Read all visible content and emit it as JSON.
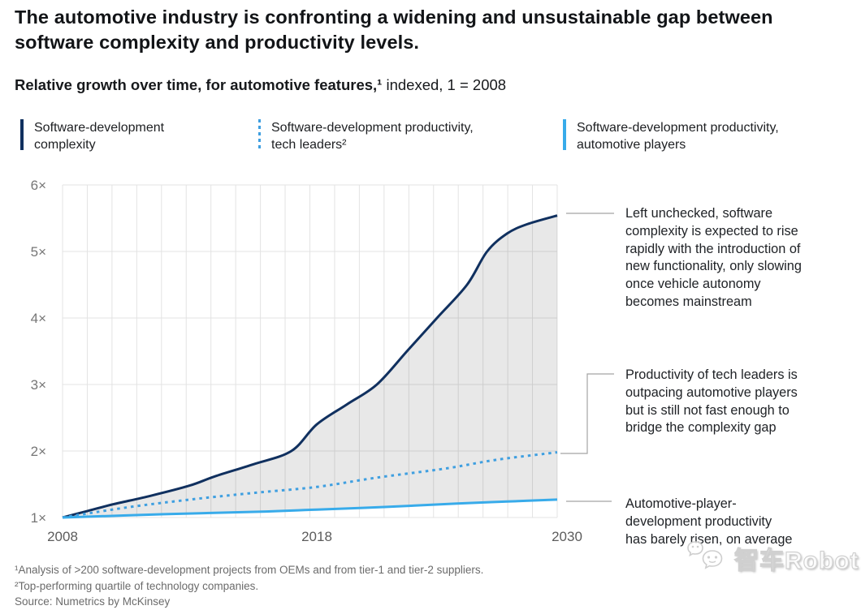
{
  "header": {
    "title": "The automotive industry is confronting a widening and unsustainable gap between software complexity and productivity levels.",
    "subtitle_bold": "Relative growth over time, for automotive features,¹",
    "subtitle_regular": " indexed, 1 = 2008"
  },
  "legend": [
    {
      "lines": [
        "Software-development",
        "complexity"
      ],
      "style": "solid-navy"
    },
    {
      "lines": [
        "Software-development productivity,",
        "tech leaders²"
      ],
      "style": "dotted-light"
    },
    {
      "lines": [
        "Software-development productivity,",
        "automotive players"
      ],
      "style": "solid-light"
    }
  ],
  "chart_data": {
    "type": "line",
    "title": "Relative growth over time, for automotive features, indexed, 1 = 2008",
    "xlim": [
      2008,
      2030
    ],
    "ylim": [
      1,
      6
    ],
    "x_ticks": [
      "2008",
      "2018",
      "2030"
    ],
    "x_tick_years": [
      2008,
      2018,
      2030
    ],
    "y_ticks": [
      "1×",
      "2×",
      "3×",
      "4×",
      "5×",
      "6×"
    ],
    "y_tick_values": [
      1,
      2,
      3,
      4,
      5,
      6
    ],
    "grid": "on",
    "legend_position": "top",
    "fill_between": {
      "upper_series": 0,
      "lower_series": 2,
      "color": "rgba(0,0,0,0.09)"
    },
    "series": [
      {
        "name": "Software-development complexity",
        "color": "#10305f",
        "style": "solid",
        "points": [
          [
            2008,
            1.0
          ],
          [
            2009,
            1.1
          ],
          [
            2010,
            1.2
          ],
          [
            2011.5,
            1.33
          ],
          [
            2013,
            1.48
          ],
          [
            2014,
            1.62
          ],
          [
            2015.5,
            1.8
          ],
          [
            2017,
            2.0
          ],
          [
            2018,
            2.4
          ],
          [
            2019.5,
            2.7
          ],
          [
            2021,
            3.0
          ],
          [
            2022.5,
            3.5
          ],
          [
            2024,
            4.0
          ],
          [
            2025.5,
            4.5
          ],
          [
            2026.5,
            5.0
          ],
          [
            2027.5,
            5.27
          ],
          [
            2028.5,
            5.41
          ],
          [
            2030,
            5.54
          ]
        ]
      },
      {
        "name": "Software-development productivity, tech leaders",
        "color": "#3f9fe0",
        "style": "dotted",
        "points": [
          [
            2008,
            1.0
          ],
          [
            2010.5,
            1.15
          ],
          [
            2013,
            1.27
          ],
          [
            2015.5,
            1.37
          ],
          [
            2018,
            1.46
          ],
          [
            2021,
            1.6
          ],
          [
            2024.5,
            1.74
          ],
          [
            2027,
            1.87
          ],
          [
            2030,
            1.98
          ]
        ]
      },
      {
        "name": "Software-development productivity, automotive players",
        "color": "#38abea",
        "style": "solid",
        "points": [
          [
            2008,
            1.0
          ],
          [
            2012,
            1.05
          ],
          [
            2016,
            1.09
          ],
          [
            2018,
            1.12
          ],
          [
            2021.5,
            1.16
          ],
          [
            2025,
            1.21
          ],
          [
            2027.5,
            1.24
          ],
          [
            2030,
            1.27
          ]
        ]
      }
    ]
  },
  "annotations": [
    {
      "lines": [
        "Left unchecked, software",
        "complexity is expected to rise",
        "rapidly with the introduction of",
        "new functionality, only slowing",
        "once vehicle autonomy",
        "becomes mainstream"
      ]
    },
    {
      "lines": [
        "Productivity of tech leaders is",
        "outpacing automotive players",
        "but is still not fast enough to",
        "bridge the complexity gap"
      ]
    },
    {
      "lines": [
        "Automotive-player-",
        "development productivity",
        "has barely risen, on average"
      ]
    }
  ],
  "footnotes": [
    "¹Analysis of >200 software-development projects from OEMs and from tier-1 and tier-2 suppliers.",
    "²Top-performing quartile of technology companies.",
    "Source: Numetrics by McKinsey"
  ],
  "watermark": {
    "text": "智车Robot"
  },
  "colors": {
    "complexity_line": "#10305f",
    "tech_leader_line": "#3f9fe0",
    "automotive_line": "#38abea",
    "gap_fill": "rgba(0,0,0,0.09)",
    "gridline": "#e3e3e3",
    "axis_label": "#767676",
    "connector": "#a3a3a3"
  }
}
